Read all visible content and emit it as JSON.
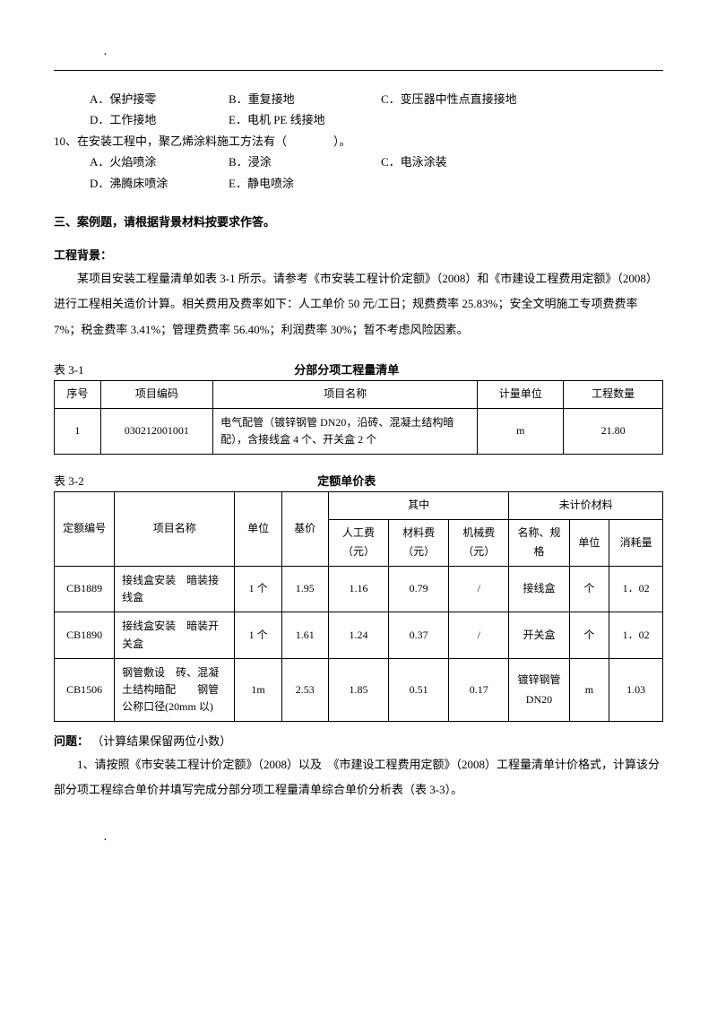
{
  "topdot": "．",
  "q9_opts": {
    "A": "A．保护接零",
    "B": "B．重复接地",
    "C": "C．变压器中性点直接接地",
    "D": "D．工作接地",
    "E": "E．电机 PE 线接地"
  },
  "q10": "10、在安装工程中，聚乙烯涂料施工方法有（　　　　）。",
  "q10_opts": {
    "A": "A．火焰喷涂",
    "B": "B．浸涂",
    "C": "C．电泳涂装",
    "D": "D．沸腾床喷涂",
    "E": "E．静电喷涂"
  },
  "sec3": "三、案例题，请根据背景材料按要求作答。",
  "bg_title": "工程背景：",
  "bg_para": "某项目安装工程量清单如表 3-1 所示。请参考《市安装工程计价定额》（2008）和《市建设工程费用定额》（2008）进行工程相关造价计算。相关费用及费率如下：人工单价 50 元/工日；规费费率 25.83%；安全文明施工专项费费率 7%；税金费率 3.41%；管理费费率 56.40%；利润费率 30%；暂不考虑风险因素。",
  "table31": {
    "label": "表 3-1",
    "title": "分部分项工程量清单",
    "headers": [
      "序号",
      "项目编码",
      "项目名称",
      "计量单位",
      "工程数量"
    ],
    "row": {
      "seq": "1",
      "code": "030212001001",
      "name": "电气配管（镀锌钢管 DN20，沿砖、混凝土结构暗配），含接线盒 4 个、开关盒 2 个",
      "unit": "m",
      "qty": "21.80"
    }
  },
  "table32": {
    "label": "表 3-2",
    "title": "定额单价表",
    "headers": {
      "code": "定额编号",
      "name": "项目名称",
      "unit": "单位",
      "base": "基价",
      "mid_group": "其中",
      "labor": "人工费（元）",
      "material": "材料费（元）",
      "machine": "机械费（元）",
      "unpriced_group": "未计价材料",
      "spec": "名称、规格",
      "u2": "单位",
      "consume": "消耗量"
    },
    "rows": [
      {
        "code": "CB1889",
        "name": "接线盒安装　暗装接线盒",
        "unit": "1 个",
        "base": "1.95",
        "labor": "1.16",
        "material": "0.79",
        "machine": "/",
        "spec": "接线盒",
        "u2": "个",
        "consume": "1．02"
      },
      {
        "code": "CB1890",
        "name": "接线盒安装　暗装开关盒",
        "unit": "1 个",
        "base": "1.61",
        "labor": "1.24",
        "material": "0.37",
        "machine": "/",
        "spec": "开关盒",
        "u2": "个",
        "consume": "1．02"
      },
      {
        "code": "CB1506",
        "name": "钢管敷设　砖、混凝土结构暗配　　钢管公称口径(20mm 以)",
        "unit": "1m",
        "base": "2.53",
        "labor": "1.85",
        "material": "0.51",
        "machine": "0.17",
        "spec": "镀锌钢管DN20",
        "u2": "m",
        "consume": "1.03"
      }
    ]
  },
  "question_label": "问题：",
  "question_hint": "（计算结果保留两位小数）",
  "q1": "1、请按照《市安装工程计价定额》（2008）以及　《市建设工程费用定额》（2008）工程量清单计价格式，计算该分部分项工程综合单价并填写完成分部分项工程量清单综合单价分析表（表 3-3）。",
  "bottomdot": "．"
}
